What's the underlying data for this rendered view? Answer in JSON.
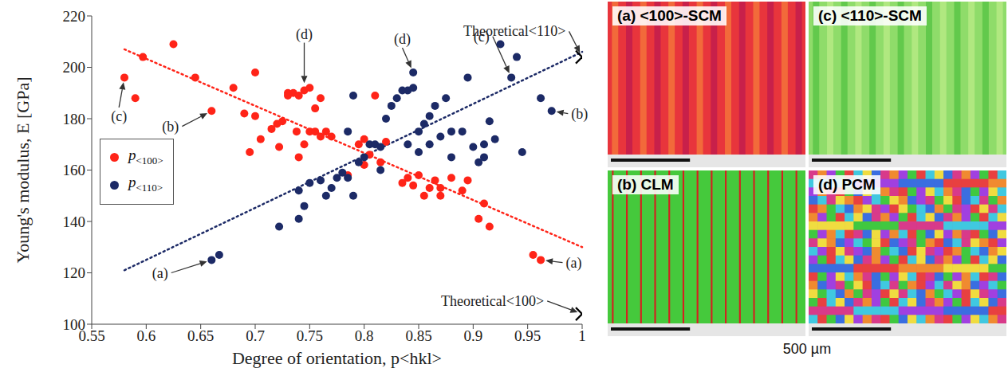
{
  "chart_data": {
    "type": "scatter",
    "x_label": "Degree of orientation, p<hkl>",
    "y_label": "Young's modulus, E [GPa]",
    "xlim": [
      0.55,
      1
    ],
    "xticks": [
      0.55,
      0.6,
      0.65,
      0.7,
      0.75,
      0.8,
      0.85,
      0.9,
      0.95,
      1
    ],
    "ylim": [
      100,
      220
    ],
    "yticks": [
      100,
      120,
      140,
      160,
      180,
      200,
      220
    ],
    "grid": false,
    "legend": "left",
    "series": [
      {
        "name": "p<100>",
        "color": "#ff2418",
        "marker": "circle",
        "x": [
          0.58,
          0.59,
          0.597,
          0.625,
          0.645,
          0.66,
          0.68,
          0.69,
          0.695,
          0.7,
          0.7,
          0.705,
          0.715,
          0.72,
          0.722,
          0.725,
          0.73,
          0.735,
          0.738,
          0.74,
          0.74,
          0.745,
          0.745,
          0.75,
          0.75,
          0.755,
          0.755,
          0.76,
          0.76,
          0.765,
          0.77,
          0.73,
          0.785,
          0.795,
          0.8,
          0.8,
          0.805,
          0.81,
          0.815,
          0.82,
          0.835,
          0.84,
          0.845,
          0.85,
          0.855,
          0.86,
          0.865,
          0.87,
          0.87,
          0.88,
          0.89,
          0.895,
          0.905,
          0.91,
          0.915,
          0.955,
          0.962
        ],
        "values": [
          196,
          188,
          204,
          209,
          196,
          183,
          192,
          182,
          167,
          181,
          198,
          172,
          176,
          178,
          169,
          179,
          190,
          190,
          175,
          189,
          165,
          170,
          191,
          192,
          175,
          184,
          175,
          173,
          188,
          175,
          173,
          189,
          158,
          170,
          172,
          162,
          166,
          189,
          163,
          171,
          155,
          157,
          154,
          158,
          150,
          153,
          156,
          150,
          153,
          157,
          152,
          156,
          141,
          147,
          138,
          127,
          125
        ]
      },
      {
        "name": "p<110>",
        "color": "#1c2a66",
        "marker": "circle",
        "x": [
          0.66,
          0.667,
          0.722,
          0.74,
          0.74,
          0.745,
          0.75,
          0.76,
          0.765,
          0.77,
          0.775,
          0.78,
          0.785,
          0.785,
          0.79,
          0.79,
          0.795,
          0.8,
          0.805,
          0.81,
          0.815,
          0.815,
          0.82,
          0.825,
          0.83,
          0.835,
          0.84,
          0.84,
          0.845,
          0.845,
          0.85,
          0.85,
          0.855,
          0.86,
          0.86,
          0.865,
          0.87,
          0.875,
          0.88,
          0.88,
          0.89,
          0.895,
          0.9,
          0.905,
          0.91,
          0.91,
          0.915,
          0.92,
          0.925,
          0.935,
          0.94,
          0.945,
          0.962,
          0.972
        ],
        "values": [
          125,
          127,
          138,
          152,
          141,
          146,
          155,
          156,
          150,
          153,
          157,
          159,
          157,
          175,
          150,
          189,
          163,
          165,
          170,
          170,
          169,
          160,
          180,
          185,
          188,
          191,
          191,
          170,
          198,
          192,
          167,
          175,
          178,
          181,
          170,
          185,
          173,
          188,
          175,
          165,
          175,
          196,
          169,
          163,
          165,
          170,
          179,
          172,
          209,
          196,
          204,
          167,
          188,
          183
        ]
      }
    ],
    "trend_lines": [
      {
        "color": "#ff2418",
        "line_style": "dotted",
        "x": [
          0.58,
          1
        ],
        "values": [
          207,
          130
        ]
      },
      {
        "color": "#1c2a66",
        "line_style": "dotted",
        "x": [
          0.58,
          1
        ],
        "values": [
          121,
          206
        ]
      }
    ],
    "theoretical": {
      "marker": "x",
      "color": "#000000",
      "x": [
        1,
        1
      ],
      "values": [
        204,
        104
      ]
    },
    "annotations": [
      {
        "text": "(c)",
        "x": 0.58,
        "y": 196,
        "text_x": 0.575,
        "text_y": 181
      },
      {
        "text": "(b)",
        "x": 0.66,
        "y": 183,
        "text_x": 0.63,
        "text_y": 177
      },
      {
        "text": "(d)",
        "x": 0.745,
        "y": 192,
        "text_x": 0.745,
        "text_y": 213
      },
      {
        "text": "(a)",
        "x": 0.962,
        "y": 125,
        "text_x": 0.985,
        "text_y": 124
      },
      {
        "text": "(a)",
        "x": 0.66,
        "y": 125,
        "text_x": 0.62,
        "text_y": 120
      },
      {
        "text": "(d)",
        "x": 0.845,
        "y": 198,
        "text_x": 0.835,
        "text_y": 211
      },
      {
        "text": "(c)",
        "x": 0.935,
        "y": 196,
        "text_x": 0.915,
        "text_y": 212
      },
      {
        "text": "(b)",
        "x": 0.972,
        "y": 183,
        "text_x": 0.99,
        "text_y": 182
      },
      {
        "text": "Theoretical<110>",
        "x": 1,
        "y": 204,
        "text_x": 0.985,
        "text_y": 214
      },
      {
        "text": "Theoretical<100>",
        "x": 1,
        "y": 104,
        "text_x": 0.965,
        "text_y": 109
      }
    ]
  },
  "panels": [
    {
      "label": "(a) <100>-SCM",
      "colors": [
        "#e8353c",
        "#f26a3a",
        "#c8204a"
      ]
    },
    {
      "label": "(c) <110>-SCM",
      "colors": [
        "#8fdc6a",
        "#62c94c",
        "#b0e880"
      ]
    },
    {
      "label": "(b) CLM",
      "colors": [
        "#45c93c",
        "#d42020"
      ]
    },
    {
      "label": "(d) PCM",
      "colors": [
        "#d83a8a",
        "#3a6ee0",
        "#f0dc40",
        "#40c8e0",
        "#e84040",
        "#40c840",
        "#a040e0",
        "#f08a30"
      ]
    }
  ],
  "scale_bar": "500 µm"
}
